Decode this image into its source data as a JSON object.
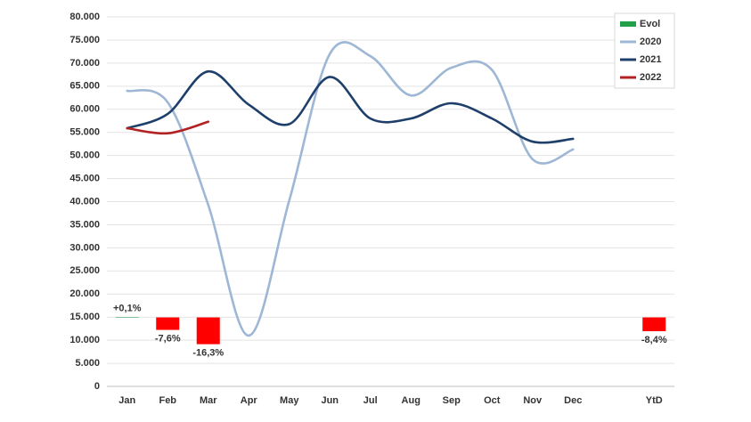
{
  "chart_data": {
    "type": "line",
    "categories": [
      "Jan",
      "Feb",
      "Mar",
      "Apr",
      "May",
      "Jun",
      "Jul",
      "Aug",
      "Sep",
      "Oct",
      "Nov",
      "Dec",
      null,
      "YtD"
    ],
    "ylim": [
      0,
      80000
    ],
    "yticks": [
      0,
      {
        "value": 5000,
        "label": "5.000"
      },
      {
        "value": 10000,
        "label": "10.000"
      },
      {
        "value": 15000,
        "label": "15.000"
      },
      {
        "value": 20000,
        "label": "20.000"
      },
      {
        "value": 25000,
        "label": "25.000"
      },
      {
        "value": 30000,
        "label": "30.000"
      },
      {
        "value": 35000,
        "label": "35.000"
      },
      {
        "value": 40000,
        "label": "40.000"
      },
      {
        "value": 45000,
        "label": "45.000"
      },
      {
        "value": 50000,
        "label": "50.000"
      },
      {
        "value": 55000,
        "label": "55.000"
      },
      {
        "value": 60000,
        "label": "60.000"
      },
      {
        "value": 65000,
        "label": "65.000"
      },
      {
        "value": 70000,
        "label": "70.000"
      },
      {
        "value": 75000,
        "label": "75.000"
      },
      {
        "value": 80000,
        "label": "80.000"
      }
    ],
    "y2lim": [
      -42,
      183
    ],
    "grid": true,
    "legend": "top-right",
    "series": [
      {
        "name": "Evol",
        "type": "bar",
        "axis": "y2",
        "color": "#22a04a",
        "negative_color": "#ff0000",
        "values": [
          0.1,
          -7.6,
          -16.3,
          null,
          null,
          null,
          null,
          null,
          null,
          null,
          null,
          null,
          null,
          -8.4
        ],
        "value_labels": [
          "+0,1%",
          "-7,6%",
          "-16,3%",
          null,
          null,
          null,
          null,
          null,
          null,
          null,
          null,
          null,
          null,
          "-8,4%"
        ]
      },
      {
        "name": "2020",
        "color": "#9db7d5",
        "values": [
          64000,
          61500,
          39300,
          11000,
          40300,
          72000,
          71500,
          63000,
          69000,
          68500,
          49200,
          51300,
          null,
          null
        ]
      },
      {
        "name": "2021",
        "color": "#1f3f6b",
        "values": [
          55900,
          59000,
          68200,
          61000,
          56800,
          67000,
          58000,
          58000,
          61300,
          58000,
          53000,
          53600,
          null,
          null
        ]
      },
      {
        "name": "2022",
        "color": "#b22222",
        "values": [
          55900,
          54800,
          57300,
          null,
          null,
          null,
          null,
          null,
          null,
          null,
          null,
          null,
          null,
          null
        ]
      }
    ]
  }
}
